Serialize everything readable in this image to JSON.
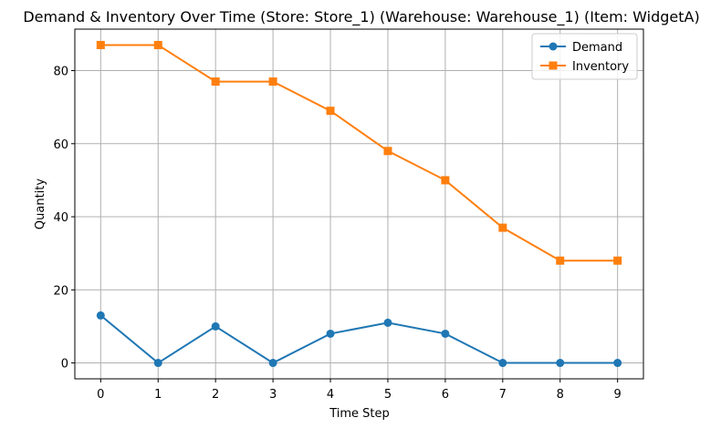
{
  "chart_data": {
    "type": "line",
    "title": "Demand & Inventory Over Time (Store: Store_1) (Warehouse: Warehouse_1) (Item: WidgetA)",
    "xlabel": "Time Step",
    "ylabel": "Quantity",
    "x": [
      0,
      1,
      2,
      3,
      4,
      5,
      6,
      7,
      8,
      9
    ],
    "xticks": [
      "0",
      "1",
      "2",
      "3",
      "4",
      "5",
      "6",
      "7",
      "8",
      "9"
    ],
    "yticks": [
      "0",
      "20",
      "40",
      "60",
      "80"
    ],
    "xlim": [
      -0.45,
      9.45
    ],
    "ylim": [
      -4.35,
      91.35
    ],
    "grid": true,
    "legend_position": "top-right",
    "series": [
      {
        "name": "Demand",
        "color": "#1f77b4",
        "marker": "circle",
        "values": [
          13,
          0,
          10,
          0,
          8,
          11,
          8,
          0,
          0,
          0
        ]
      },
      {
        "name": "Inventory",
        "color": "#ff7f0e",
        "marker": "square",
        "values": [
          87,
          87,
          77,
          77,
          69,
          58,
          50,
          37,
          28,
          28
        ]
      }
    ]
  }
}
